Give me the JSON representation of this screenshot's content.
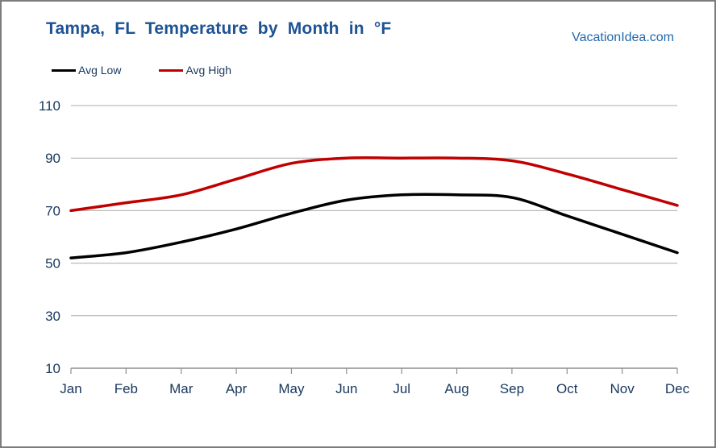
{
  "header": {
    "title": "Tampa, FL Temperature by Month in °F",
    "watermark": "VacationIdea.com"
  },
  "legend": {
    "items": [
      {
        "label": "Avg Low"
      },
      {
        "label": "Avg High"
      }
    ]
  },
  "chart_data": {
    "type": "line",
    "title": "Tampa, FL Temperature by Month in °F",
    "unit": "°F",
    "categories": [
      "Jan",
      "Feb",
      "Mar",
      "Apr",
      "May",
      "Jun",
      "Jul",
      "Aug",
      "Sep",
      "Oct",
      "Nov",
      "Dec"
    ],
    "series": [
      {
        "name": "Avg Low",
        "color": "#000000",
        "values": [
          52,
          54,
          58,
          63,
          69,
          74,
          76,
          76,
          75,
          68,
          61,
          54
        ]
      },
      {
        "name": "Avg High",
        "color": "#c00000",
        "values": [
          70,
          73,
          76,
          82,
          88,
          90,
          90,
          90,
          89,
          84,
          78,
          72
        ]
      }
    ],
    "ylim": [
      10,
      110
    ],
    "yticks": [
      10,
      30,
      50,
      70,
      90,
      110
    ],
    "grid": true,
    "legend_position": "top-left",
    "colors": {
      "gridline": "#ababab",
      "axis": "#8f8f8f",
      "axis_text": "#17375e",
      "title_text": "#1d5295",
      "watermark_text": "#2069ad"
    }
  }
}
